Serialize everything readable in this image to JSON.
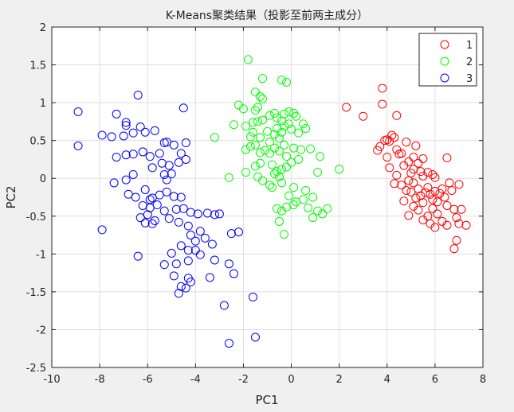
{
  "chart_data": {
    "type": "scatter",
    "title": "K-Means聚类结果（投影至前两主成分）",
    "xlabel": "PC1",
    "ylabel": "PC2",
    "xlim": [
      -10,
      8
    ],
    "ylim": [
      -2.5,
      2
    ],
    "xticks": [
      -10,
      -8,
      -6,
      -4,
      -2,
      0,
      2,
      4,
      6,
      8
    ],
    "yticks": [
      -2.5,
      -2,
      -1.5,
      -1,
      -0.5,
      0,
      0.5,
      1,
      1.5,
      2
    ],
    "grid": true,
    "legend": "top-right",
    "marker": "open-circle",
    "series": [
      {
        "name": "1",
        "color": "#ff0000",
        "points": [
          [
            2.3,
            0.94
          ],
          [
            3.0,
            0.82
          ],
          [
            3.8,
            1.19
          ],
          [
            3.8,
            0.98
          ],
          [
            4.4,
            0.83
          ],
          [
            3.6,
            0.37
          ],
          [
            3.7,
            0.42
          ],
          [
            3.9,
            0.5
          ],
          [
            4.0,
            0.28
          ],
          [
            4.0,
            0.51
          ],
          [
            4.1,
            0.49
          ],
          [
            4.2,
            0.57
          ],
          [
            4.3,
            0.54
          ],
          [
            4.4,
            0.38
          ],
          [
            4.5,
            0.32
          ],
          [
            4.6,
            0.33
          ],
          [
            4.7,
            0.17
          ],
          [
            4.8,
            0.48
          ],
          [
            4.9,
            0.22
          ],
          [
            5.0,
            0.07
          ],
          [
            5.1,
            0.12
          ],
          [
            5.1,
            0.28
          ],
          [
            5.2,
            0.43
          ],
          [
            5.3,
            0.2
          ],
          [
            5.4,
            0.09
          ],
          [
            5.5,
            0.03
          ],
          [
            5.5,
            0.26
          ],
          [
            5.7,
            0.08
          ],
          [
            5.9,
            0.05
          ],
          [
            6.0,
            0.01
          ],
          [
            6.5,
            0.27
          ],
          [
            4.1,
            0.14
          ],
          [
            4.3,
            -0.07
          ],
          [
            4.4,
            0.04
          ],
          [
            4.6,
            -0.09
          ],
          [
            4.8,
            -0.16
          ],
          [
            4.9,
            -0.03
          ],
          [
            5.0,
            -0.18
          ],
          [
            5.1,
            -0.06
          ],
          [
            5.2,
            -0.26
          ],
          [
            5.3,
            -0.14
          ],
          [
            5.4,
            -0.23
          ],
          [
            5.5,
            -0.32
          ],
          [
            5.6,
            -0.19
          ],
          [
            5.7,
            -0.12
          ],
          [
            5.8,
            -0.21
          ],
          [
            5.9,
            -0.28
          ],
          [
            6.0,
            -0.17
          ],
          [
            6.1,
            -0.31
          ],
          [
            6.2,
            -0.2
          ],
          [
            6.3,
            -0.14
          ],
          [
            6.4,
            -0.25
          ],
          [
            6.5,
            -0.36
          ],
          [
            6.6,
            -0.06
          ],
          [
            6.7,
            -0.16
          ],
          [
            6.8,
            -0.41
          ],
          [
            6.9,
            -0.52
          ],
          [
            7.0,
            -0.08
          ],
          [
            7.1,
            -0.41
          ],
          [
            7.3,
            -0.62
          ],
          [
            4.9,
            -0.49
          ],
          [
            5.1,
            -0.37
          ],
          [
            5.3,
            -0.42
          ],
          [
            5.5,
            -0.55
          ],
          [
            5.7,
            -0.5
          ],
          [
            5.8,
            -0.6
          ],
          [
            6.0,
            -0.65
          ],
          [
            6.1,
            -0.47
          ],
          [
            6.3,
            -0.57
          ],
          [
            6.5,
            -0.62
          ],
          [
            7.0,
            -0.6
          ],
          [
            6.9,
            -0.82
          ],
          [
            6.8,
            -0.93
          ],
          [
            5.9,
            -0.4
          ],
          [
            4.7,
            -0.3
          ]
        ]
      },
      {
        "name": "2",
        "color": "#00ff00",
        "points": [
          [
            -1.8,
            1.57
          ],
          [
            -1.2,
            1.32
          ],
          [
            -1.5,
            1.14
          ],
          [
            -1.3,
            1.08
          ],
          [
            -1.2,
            1.05
          ],
          [
            -2.2,
            0.97
          ],
          [
            -2.0,
            0.92
          ],
          [
            -1.4,
            0.94
          ],
          [
            -1.5,
            0.9
          ],
          [
            -0.4,
            1.3
          ],
          [
            -0.2,
            1.27
          ],
          [
            -2.4,
            0.71
          ],
          [
            -1.9,
            0.69
          ],
          [
            -1.6,
            0.74
          ],
          [
            -1.4,
            0.75
          ],
          [
            -1.2,
            0.77
          ],
          [
            -0.9,
            0.83
          ],
          [
            -0.7,
            0.86
          ],
          [
            -0.6,
            0.8
          ],
          [
            -0.4,
            0.76
          ],
          [
            -0.3,
            0.85
          ],
          [
            -0.1,
            0.88
          ],
          [
            0.1,
            0.86
          ],
          [
            0.2,
            0.82
          ],
          [
            -1.7,
            0.55
          ],
          [
            -1.6,
            0.61
          ],
          [
            -1.3,
            0.54
          ],
          [
            -1.0,
            0.62
          ],
          [
            -0.9,
            0.48
          ],
          [
            -0.7,
            0.58
          ],
          [
            -0.6,
            0.66
          ],
          [
            -0.5,
            0.53
          ],
          [
            -0.4,
            0.61
          ],
          [
            -0.3,
            0.69
          ],
          [
            -0.1,
            0.72
          ],
          [
            0.0,
            0.65
          ],
          [
            0.3,
            0.6
          ],
          [
            0.5,
            0.72
          ],
          [
            0.6,
            0.66
          ],
          [
            -3.2,
            0.54
          ],
          [
            -1.9,
            0.38
          ],
          [
            -1.7,
            0.42
          ],
          [
            -1.5,
            0.44
          ],
          [
            -1.3,
            0.34
          ],
          [
            -1.1,
            0.37
          ],
          [
            -0.9,
            0.33
          ],
          [
            -0.7,
            0.4
          ],
          [
            -0.5,
            0.36
          ],
          [
            -0.3,
            0.44
          ],
          [
            -0.2,
            0.29
          ],
          [
            0.1,
            0.4
          ],
          [
            0.4,
            0.38
          ],
          [
            0.8,
            0.39
          ],
          [
            1.2,
            0.29
          ],
          [
            -1.5,
            0.16
          ],
          [
            -1.3,
            0.2
          ],
          [
            -0.8,
            0.18
          ],
          [
            -0.6,
            0.09
          ],
          [
            -0.4,
            0.12
          ],
          [
            -0.2,
            0.15
          ],
          [
            0.0,
            0.21
          ],
          [
            0.3,
            0.25
          ],
          [
            -1.9,
            0.08
          ],
          [
            -1.4,
            0.02
          ],
          [
            -1.2,
            -0.03
          ],
          [
            -0.7,
            0.06
          ],
          [
            -0.5,
            0.02
          ],
          [
            -2.6,
            0.01
          ],
          [
            -0.9,
            -0.09
          ],
          [
            -0.4,
            -0.06
          ],
          [
            0.1,
            -0.12
          ],
          [
            0.6,
            -0.16
          ],
          [
            1.1,
            0.08
          ],
          [
            2.0,
            0.12
          ],
          [
            -0.8,
            -0.12
          ],
          [
            -0.1,
            -0.23
          ],
          [
            0.2,
            -0.31
          ],
          [
            0.5,
            -0.28
          ],
          [
            0.9,
            -0.25
          ],
          [
            1.1,
            -0.43
          ],
          [
            -0.6,
            -0.4
          ],
          [
            -0.4,
            -0.43
          ],
          [
            -0.2,
            -0.38
          ],
          [
            0.1,
            -0.35
          ],
          [
            0.7,
            -0.39
          ],
          [
            0.9,
            -0.52
          ],
          [
            1.3,
            -0.47
          ],
          [
            1.5,
            -0.4
          ],
          [
            -0.3,
            -0.74
          ],
          [
            -0.5,
            -0.57
          ]
        ]
      },
      {
        "name": "3",
        "color": "#0000ff",
        "points": [
          [
            -8.9,
            0.88
          ],
          [
            -8.9,
            0.43
          ],
          [
            -7.9,
            0.57
          ],
          [
            -7.3,
            0.85
          ],
          [
            -6.4,
            1.1
          ],
          [
            -4.5,
            0.93
          ],
          [
            -6.9,
            0.74
          ],
          [
            -6.9,
            0.7
          ],
          [
            -6.6,
            0.6
          ],
          [
            -6.3,
            0.68
          ],
          [
            -6.1,
            0.61
          ],
          [
            -7.5,
            0.55
          ],
          [
            -7.0,
            0.56
          ],
          [
            -5.7,
            0.63
          ],
          [
            -5.3,
            0.47
          ],
          [
            -5.2,
            0.48
          ],
          [
            -4.9,
            0.44
          ],
          [
            -4.4,
            0.47
          ],
          [
            -7.3,
            0.28
          ],
          [
            -6.9,
            0.31
          ],
          [
            -6.6,
            0.32
          ],
          [
            -6.2,
            0.35
          ],
          [
            -5.9,
            0.29
          ],
          [
            -5.5,
            0.33
          ],
          [
            -4.6,
            0.33
          ],
          [
            -4.4,
            0.25
          ],
          [
            -5.8,
            0.14
          ],
          [
            -5.4,
            0.2
          ],
          [
            -5.1,
            0.17
          ],
          [
            -4.7,
            0.21
          ],
          [
            -5.3,
            0.05
          ],
          [
            -5.2,
            -0.02
          ],
          [
            -5.0,
            0.06
          ],
          [
            -6.6,
            0.05
          ],
          [
            -6.9,
            -0.02
          ],
          [
            -7.4,
            -0.06
          ],
          [
            -6.8,
            -0.21
          ],
          [
            -6.5,
            -0.25
          ],
          [
            -6.1,
            -0.15
          ],
          [
            -5.8,
            -0.26
          ],
          [
            -5.5,
            -0.22
          ],
          [
            -5.2,
            -0.18
          ],
          [
            -4.9,
            -0.24
          ],
          [
            -4.6,
            -0.25
          ],
          [
            -5.9,
            -0.39
          ],
          [
            -5.6,
            -0.35
          ],
          [
            -5.3,
            -0.43
          ],
          [
            -4.8,
            -0.41
          ],
          [
            -4.5,
            -0.4
          ],
          [
            -4.2,
            -0.45
          ],
          [
            -3.9,
            -0.47
          ],
          [
            -3.5,
            -0.46
          ],
          [
            -3.2,
            -0.48
          ],
          [
            -3.0,
            -0.47
          ],
          [
            -6.3,
            -0.52
          ],
          [
            -6.0,
            -0.48
          ],
          [
            -5.7,
            -0.56
          ],
          [
            -5.1,
            -0.53
          ],
          [
            -4.7,
            -0.58
          ],
          [
            -4.3,
            -0.63
          ],
          [
            -3.8,
            -0.7
          ],
          [
            -2.5,
            -0.73
          ],
          [
            -2.2,
            -0.71
          ],
          [
            -6.1,
            -0.59
          ],
          [
            -5.8,
            -0.6
          ],
          [
            -4.0,
            -0.83
          ],
          [
            -4.2,
            -0.75
          ],
          [
            -3.6,
            -0.79
          ],
          [
            -3.3,
            -0.87
          ],
          [
            -7.9,
            -0.68
          ],
          [
            -6.4,
            -1.03
          ],
          [
            -4.6,
            -0.89
          ],
          [
            -4.3,
            -0.95
          ],
          [
            -4.0,
            -0.95
          ],
          [
            -3.8,
            -1.01
          ],
          [
            -4.3,
            -1.09
          ],
          [
            -3.2,
            -1.08
          ],
          [
            -2.6,
            -1.13
          ],
          [
            -5.0,
            -0.99
          ],
          [
            -4.8,
            -1.13
          ],
          [
            -4.9,
            -1.29
          ],
          [
            -4.2,
            -1.37
          ],
          [
            -4.3,
            -1.32
          ],
          [
            -3.4,
            -1.31
          ],
          [
            -2.4,
            -1.26
          ],
          [
            -5.3,
            -1.14
          ],
          [
            -4.7,
            -1.52
          ],
          [
            -4.6,
            -1.43
          ],
          [
            -4.4,
            -1.45
          ],
          [
            -2.8,
            -1.68
          ],
          [
            -1.6,
            -1.57
          ],
          [
            -2.6,
            -2.18
          ],
          [
            -1.5,
            -2.1
          ],
          [
            -5.9,
            -0.28
          ],
          [
            -6.2,
            -0.36
          ]
        ]
      }
    ]
  }
}
